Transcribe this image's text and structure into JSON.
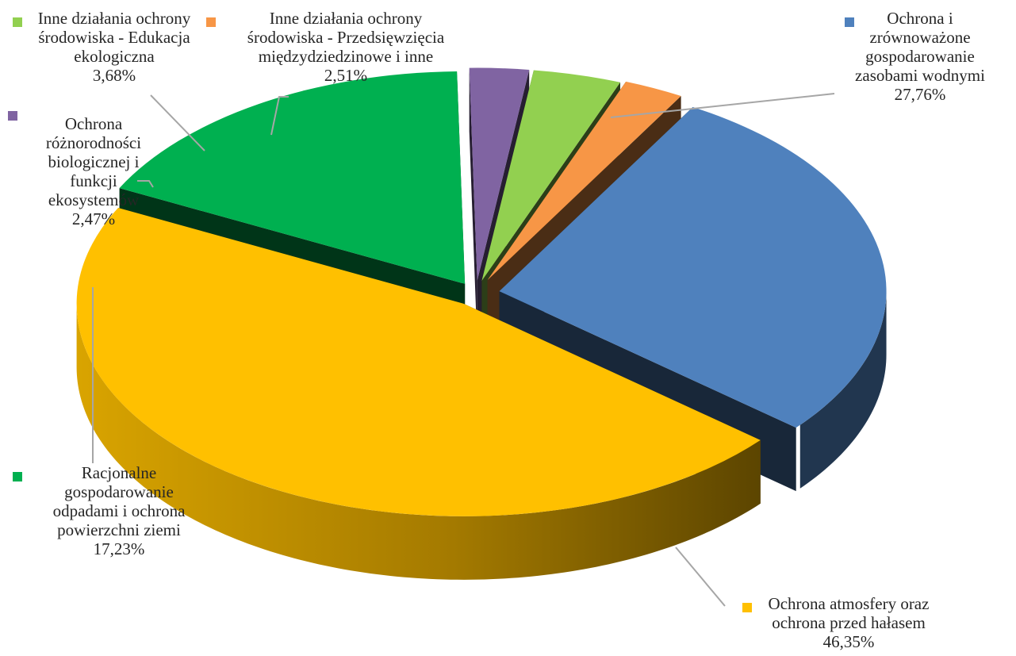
{
  "chart_data": {
    "type": "pie",
    "title": "",
    "slices": [
      {
        "label": [
          "Ochrona i",
          "zrównoważone",
          "gospodarowanie",
          "zasobami wodnymi"
        ],
        "value": 27.76,
        "value_label": "27,76%",
        "color": "#4F81BD"
      },
      {
        "label": [
          "Ochrona atmosfery oraz",
          "ochrona przed  hałasem"
        ],
        "value": 46.35,
        "value_label": "46,35%",
        "color": "#FFC000"
      },
      {
        "label": [
          "Racjonalne",
          "gospodarowanie",
          "odpadami i ochrona",
          "powierzchni ziemi"
        ],
        "value": 17.23,
        "value_label": "17,23%",
        "color": "#00B050"
      },
      {
        "label": [
          "Ochrona",
          "różnorodności",
          "biologicznej i",
          "funkcji",
          "ekosystemów"
        ],
        "value": 2.47,
        "value_label": "2,47%",
        "color": "#8064A2"
      },
      {
        "label": [
          "Inne działania ochrony",
          "środowiska - Edukacja",
          "ekologiczna"
        ],
        "value": 3.68,
        "value_label": "3,68%",
        "color": "#92D050"
      },
      {
        "label": [
          "Inne działania ochrony",
          "środowiska - Przedsięwzięcia",
          "międzydziedzinowe i inne"
        ],
        "value": 2.51,
        "value_label": "2,51%",
        "color": "#F79646"
      }
    ]
  }
}
